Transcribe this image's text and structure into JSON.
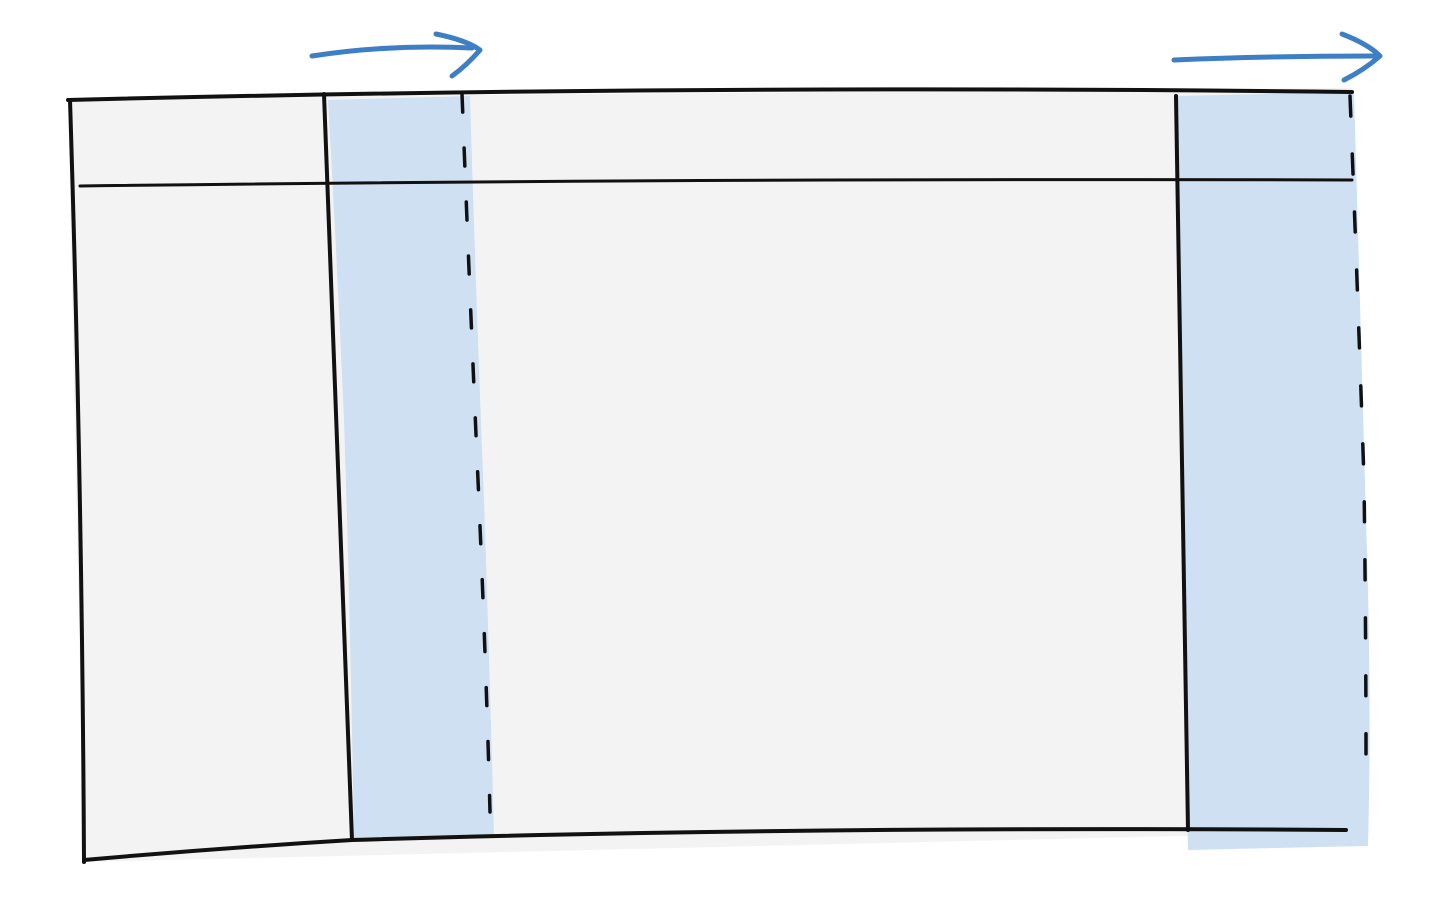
{
  "diagram": {
    "kind": "window-layout-sketch",
    "panes": [
      {
        "name": "left-pane"
      },
      {
        "name": "middle-pane"
      },
      {
        "name": "right-pane"
      }
    ],
    "header_row": true,
    "resize_handles": [
      {
        "name": "left-divider",
        "direction": "right",
        "color": "#cfe0f2"
      },
      {
        "name": "right-edge",
        "direction": "right",
        "color": "#cfe0f2"
      }
    ],
    "colors": {
      "background": "#ffffff",
      "panel_fill": "#f3f3f3",
      "handle_fill": "#cfe0f2",
      "line": "#111111",
      "arrow": "#3d7ec4"
    }
  }
}
